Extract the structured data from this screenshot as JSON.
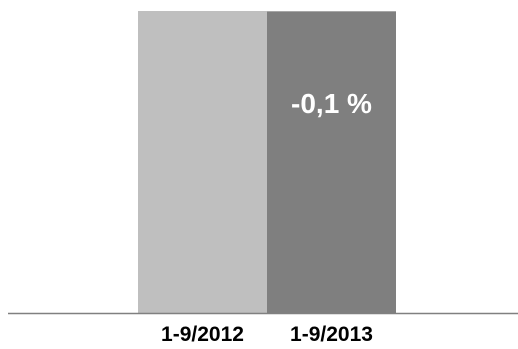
{
  "chart_data": {
    "type": "bar",
    "categories": [
      "1-9/2012",
      "1-9/2013"
    ],
    "values": [
      100,
      99.9
    ],
    "title": "",
    "xlabel": "",
    "ylabel": "",
    "ylim": [
      0,
      100
    ],
    "grid": false,
    "legend": "none",
    "colors": [
      "#bfbfbf",
      "#7f7f7f"
    ],
    "axis_color": "#808080",
    "annotation": {
      "category": "1-9/2013",
      "text": "-0,1 %",
      "color": "#ffffff"
    }
  }
}
